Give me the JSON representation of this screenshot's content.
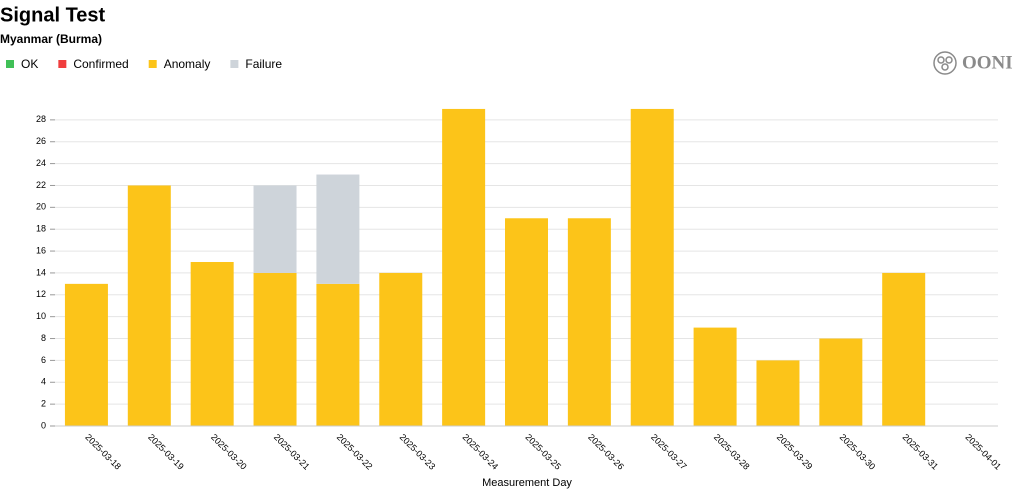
{
  "chart_data": {
    "type": "stacked-bar",
    "title": "Signal Test",
    "subtitle": "Myanmar (Burma)",
    "logo": "OONI",
    "x_label": "Measurement Day",
    "categories": [
      "2025-03-18",
      "2025-03-19",
      "2025-03-20",
      "2025-03-21",
      "2025-03-22",
      "2025-03-23",
      "2025-03-24",
      "2025-03-25",
      "2025-03-26",
      "2025-03-27",
      "2025-03-28",
      "2025-03-29",
      "2025-03-30",
      "2025-03-31",
      "2025-04-01"
    ],
    "series": [
      {
        "name": "OK",
        "color": "#40c057",
        "values": [
          0,
          0,
          0,
          0,
          0,
          0,
          0,
          0,
          0,
          0,
          0,
          0,
          0,
          0,
          0
        ]
      },
      {
        "name": "Confirmed",
        "color": "#f03e3e",
        "values": [
          0,
          0,
          0,
          0,
          0,
          0,
          0,
          0,
          0,
          0,
          0,
          0,
          0,
          0,
          0
        ]
      },
      {
        "name": "Anomaly",
        "color": "#fcc419",
        "values": [
          13,
          22,
          15,
          14,
          13,
          14,
          29,
          19,
          19,
          29,
          9,
          6,
          8,
          14,
          0
        ]
      },
      {
        "name": "Failure",
        "color": "#ced4da",
        "values": [
          0,
          0,
          0,
          8,
          10,
          0,
          0,
          0,
          0,
          0,
          0,
          0,
          0,
          0,
          0
        ]
      }
    ],
    "ylim": [
      0,
      30
    ],
    "yticks": [
      0,
      2,
      4,
      6,
      8,
      10,
      12,
      14,
      16,
      18,
      20,
      22,
      24,
      26,
      28
    ],
    "grid": true
  }
}
